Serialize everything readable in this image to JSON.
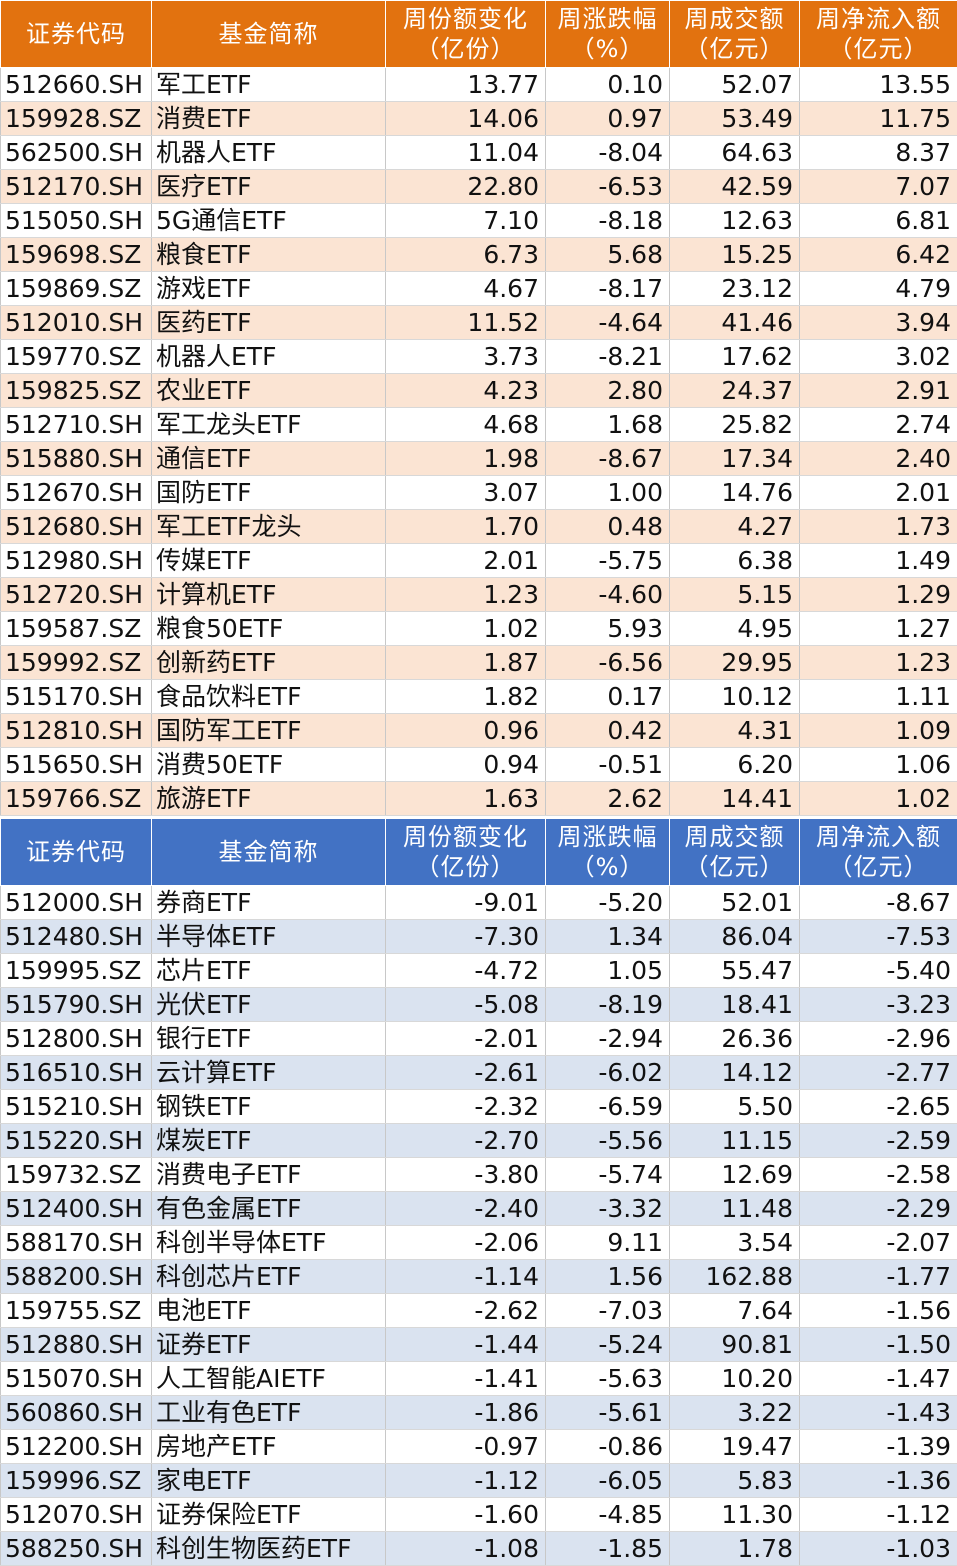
{
  "inflow_table": {
    "headers": [
      [
        "证券代码"
      ],
      [
        "基金简称"
      ],
      [
        "周份额变化",
        "（亿份）"
      ],
      [
        "周涨跌幅",
        "（%）"
      ],
      [
        "周成交额",
        "（亿元）"
      ],
      [
        "周净流入额",
        "（亿元）"
      ]
    ],
    "rows": [
      [
        "512660.SH",
        "军工ETF",
        "13.77",
        "0.10",
        "52.07",
        "13.55"
      ],
      [
        "159928.SZ",
        "消费ETF",
        "14.06",
        "0.97",
        "53.49",
        "11.75"
      ],
      [
        "562500.SH",
        "机器人ETF",
        "11.04",
        "-8.04",
        "64.63",
        "8.37"
      ],
      [
        "512170.SH",
        "医疗ETF",
        "22.80",
        "-6.53",
        "42.59",
        "7.07"
      ],
      [
        "515050.SH",
        "5G通信ETF",
        "7.10",
        "-8.18",
        "12.63",
        "6.81"
      ],
      [
        "159698.SZ",
        "粮食ETF",
        "6.73",
        "5.68",
        "15.25",
        "6.42"
      ],
      [
        "159869.SZ",
        "游戏ETF",
        "4.67",
        "-8.17",
        "23.12",
        "4.79"
      ],
      [
        "512010.SH",
        "医药ETF",
        "11.52",
        "-4.64",
        "41.46",
        "3.94"
      ],
      [
        "159770.SZ",
        "机器人ETF",
        "3.73",
        "-8.21",
        "17.62",
        "3.02"
      ],
      [
        "159825.SZ",
        "农业ETF",
        "4.23",
        "2.80",
        "24.37",
        "2.91"
      ],
      [
        "512710.SH",
        "军工龙头ETF",
        "4.68",
        "1.68",
        "25.82",
        "2.74"
      ],
      [
        "515880.SH",
        "通信ETF",
        "1.98",
        "-8.67",
        "17.34",
        "2.40"
      ],
      [
        "512670.SH",
        "国防ETF",
        "3.07",
        "1.00",
        "14.76",
        "2.01"
      ],
      [
        "512680.SH",
        "军工ETF龙头",
        "1.70",
        "0.48",
        "4.27",
        "1.73"
      ],
      [
        "512980.SH",
        "传媒ETF",
        "2.01",
        "-5.75",
        "6.38",
        "1.49"
      ],
      [
        "512720.SH",
        "计算机ETF",
        "1.23",
        "-4.60",
        "5.15",
        "1.29"
      ],
      [
        "159587.SZ",
        "粮食50ETF",
        "1.02",
        "5.93",
        "4.95",
        "1.27"
      ],
      [
        "159992.SZ",
        "创新药ETF",
        "1.87",
        "-6.56",
        "29.95",
        "1.23"
      ],
      [
        "515170.SH",
        "食品饮料ETF",
        "1.82",
        "0.17",
        "10.12",
        "1.11"
      ],
      [
        "512810.SH",
        "国防军工ETF",
        "0.96",
        "0.42",
        "4.31",
        "1.09"
      ],
      [
        "515650.SH",
        "消费50ETF",
        "0.94",
        "-0.51",
        "6.20",
        "1.06"
      ],
      [
        "159766.SZ",
        "旅游ETF",
        "1.63",
        "2.62",
        "14.41",
        "1.02"
      ]
    ]
  },
  "outflow_table": {
    "headers": [
      [
        "证券代码"
      ],
      [
        "基金简称"
      ],
      [
        "周份额变化",
        "（亿份）"
      ],
      [
        "周涨跌幅",
        "（%）"
      ],
      [
        "周成交额",
        "（亿元）"
      ],
      [
        "周净流入额",
        "（亿元）"
      ]
    ],
    "rows": [
      [
        "512000.SH",
        "券商ETF",
        "-9.01",
        "-5.20",
        "52.01",
        "-8.67"
      ],
      [
        "512480.SH",
        "半导体ETF",
        "-7.30",
        "1.34",
        "86.04",
        "-7.53"
      ],
      [
        "159995.SZ",
        "芯片ETF",
        "-4.72",
        "1.05",
        "55.47",
        "-5.40"
      ],
      [
        "515790.SH",
        "光伏ETF",
        "-5.08",
        "-8.19",
        "18.41",
        "-3.23"
      ],
      [
        "512800.SH",
        "银行ETF",
        "-2.01",
        "-2.94",
        "26.36",
        "-2.96"
      ],
      [
        "516510.SH",
        "云计算ETF",
        "-2.61",
        "-6.02",
        "14.12",
        "-2.77"
      ],
      [
        "515210.SH",
        "钢铁ETF",
        "-2.32",
        "-6.59",
        "5.50",
        "-2.65"
      ],
      [
        "515220.SH",
        "煤炭ETF",
        "-2.70",
        "-5.56",
        "11.15",
        "-2.59"
      ],
      [
        "159732.SZ",
        "消费电子ETF",
        "-3.80",
        "-5.74",
        "12.69",
        "-2.58"
      ],
      [
        "512400.SH",
        "有色金属ETF",
        "-2.40",
        "-3.32",
        "11.48",
        "-2.29"
      ],
      [
        "588170.SH",
        "科创半导体ETF",
        "-2.06",
        "9.11",
        "3.54",
        "-2.07"
      ],
      [
        "588200.SH",
        "科创芯片ETF",
        "-1.14",
        "1.56",
        "162.88",
        "-1.77"
      ],
      [
        "159755.SZ",
        "电池ETF",
        "-2.62",
        "-7.03",
        "7.64",
        "-1.56"
      ],
      [
        "512880.SH",
        "证券ETF",
        "-1.44",
        "-5.24",
        "90.81",
        "-1.50"
      ],
      [
        "515070.SH",
        "人工智能AIETF",
        "-1.41",
        "-5.63",
        "10.20",
        "-1.47"
      ],
      [
        "560860.SH",
        "工业有色ETF",
        "-1.86",
        "-5.61",
        "3.22",
        "-1.43"
      ],
      [
        "512200.SH",
        "房地产ETF",
        "-0.97",
        "-0.86",
        "19.47",
        "-1.39"
      ],
      [
        "159996.SZ",
        "家电ETF",
        "-1.12",
        "-6.05",
        "5.83",
        "-1.36"
      ],
      [
        "512070.SH",
        "证券保险ETF",
        "-1.60",
        "-4.85",
        "11.30",
        "-1.12"
      ],
      [
        "588250.SH",
        "科创生物医药ETF",
        "-1.08",
        "-1.85",
        "1.78",
        "-1.03"
      ]
    ]
  }
}
